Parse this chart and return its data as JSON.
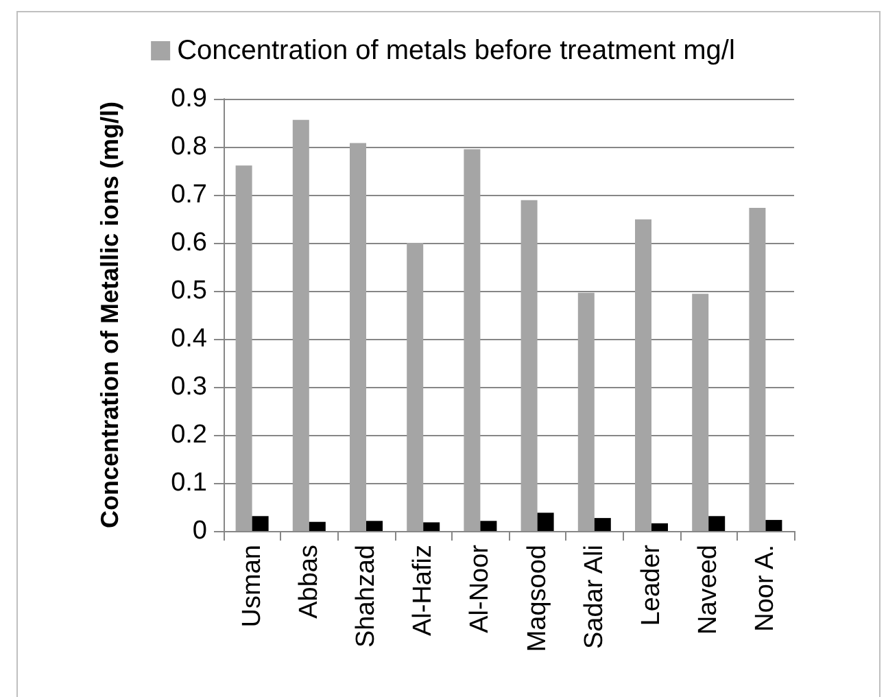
{
  "chart_data": {
    "type": "bar",
    "ylabel": "Concentration of Metallic ions (mg/l)",
    "categories": [
      "Usman",
      "Abbas",
      "Shahzad",
      "Al-Hafiz",
      "Al-Noor",
      "Maqsood",
      "Sadar Ali",
      "Leader",
      "Naveed",
      "Noor A."
    ],
    "series": [
      {
        "name": "Concentration of metals before treatment mg/l",
        "color": "#a5a5a5",
        "values": [
          0.761,
          0.856,
          0.808,
          0.6,
          0.795,
          0.689,
          0.496,
          0.649,
          0.494,
          0.673
        ]
      },
      {
        "color": "#000000",
        "values": [
          0.031,
          0.019,
          0.021,
          0.018,
          0.021,
          0.038,
          0.027,
          0.016,
          0.031,
          0.023
        ]
      }
    ],
    "ylim": [
      0,
      0.9
    ],
    "yticks": [
      0,
      0.1,
      0.2,
      0.3,
      0.4,
      0.5,
      0.6,
      0.7,
      0.8,
      0.9
    ],
    "grid": "y",
    "legend": "top"
  }
}
